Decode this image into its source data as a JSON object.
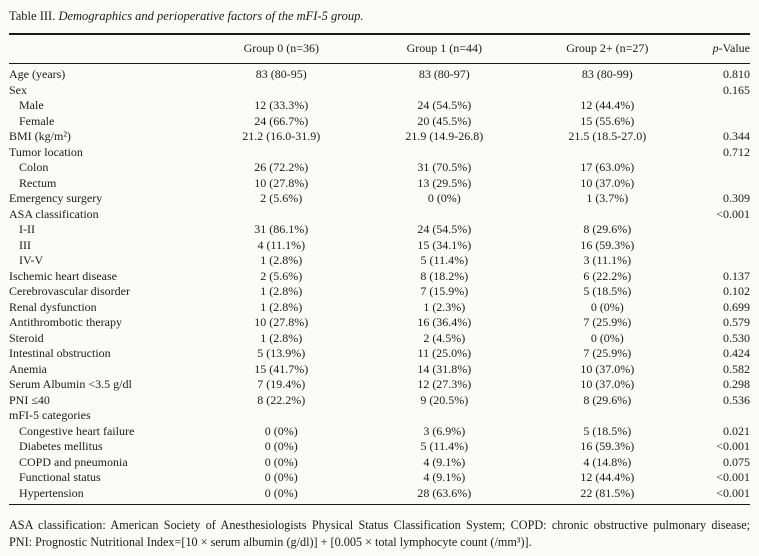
{
  "title": {
    "label": "Table III.",
    "caption": "Demographics and perioperative factors of the mFI-5 group."
  },
  "table": {
    "columns": [
      "Group 0 (n=36)",
      "Group 1 (n=44)",
      "Group 2+ (n=27)"
    ],
    "p_value_header": {
      "italic": "p",
      "rest": "-Value"
    },
    "rows": [
      {
        "label": "Age (years)",
        "indent": false,
        "g0": "83 (80-95)",
        "g1": "83 (80-97)",
        "g2": "83 (80-99)",
        "p": "0.810"
      },
      {
        "label": "Sex",
        "indent": false,
        "g0": "",
        "g1": "",
        "g2": "",
        "p": "0.165"
      },
      {
        "label": "Male",
        "indent": true,
        "g0": "12 (33.3%)",
        "g1": "24 (54.5%)",
        "g2": "12 (44.4%)",
        "p": ""
      },
      {
        "label": "Female",
        "indent": true,
        "g0": "24 (66.7%)",
        "g1": "20 (45.5%)",
        "g2": "15 (55.6%)",
        "p": ""
      },
      {
        "label": "BMI (kg/m²)",
        "indent": false,
        "g0": "21.2 (16.0-31.9)",
        "g1": "21.9 (14.9-26.8)",
        "g2": "21.5 (18.5-27.0)",
        "p": "0.344"
      },
      {
        "label": "Tumor location",
        "indent": false,
        "g0": "",
        "g1": "",
        "g2": "",
        "p": "0.712"
      },
      {
        "label": "Colon",
        "indent": true,
        "g0": "26 (72.2%)",
        "g1": "31 (70.5%)",
        "g2": "17 (63.0%)",
        "p": ""
      },
      {
        "label": "Rectum",
        "indent": true,
        "g0": "10 (27.8%)",
        "g1": "13 (29.5%)",
        "g2": "10 (37.0%)",
        "p": ""
      },
      {
        "label": "Emergency surgery",
        "indent": false,
        "g0": "2 (5.6%)",
        "g1": "0 (0%)",
        "g2": "1 (3.7%)",
        "p": "0.309"
      },
      {
        "label": "ASA classification",
        "indent": false,
        "g0": "",
        "g1": "",
        "g2": "",
        "p": "<0.001"
      },
      {
        "label": "I-II",
        "indent": true,
        "g0": "31 (86.1%)",
        "g1": "24 (54.5%)",
        "g2": "8 (29.6%)",
        "p": ""
      },
      {
        "label": "III",
        "indent": true,
        "g0": "4 (11.1%)",
        "g1": "15 (34.1%)",
        "g2": "16 (59.3%)",
        "p": ""
      },
      {
        "label": "IV-V",
        "indent": true,
        "g0": "1 (2.8%)",
        "g1": "5 (11.4%)",
        "g2": "3 (11.1%)",
        "p": ""
      },
      {
        "label": "Ischemic heart disease",
        "indent": false,
        "g0": "2 (5.6%)",
        "g1": "8 (18.2%)",
        "g2": "6 (22.2%)",
        "p": "0.137"
      },
      {
        "label": "Cerebrovascular disorder",
        "indent": false,
        "g0": "1 (2.8%)",
        "g1": "7 (15.9%)",
        "g2": "5 (18.5%)",
        "p": "0.102"
      },
      {
        "label": "Renal dysfunction",
        "indent": false,
        "g0": "1 (2.8%)",
        "g1": "1 (2.3%)",
        "g2": "0 (0%)",
        "p": "0.699"
      },
      {
        "label": "Antithrombotic therapy",
        "indent": false,
        "g0": "10 (27.8%)",
        "g1": "16 (36.4%)",
        "g2": "7 (25.9%)",
        "p": "0.579"
      },
      {
        "label": "Steroid",
        "indent": false,
        "g0": "1 (2.8%)",
        "g1": "2 (4.5%)",
        "g2": "0 (0%)",
        "p": "0.530"
      },
      {
        "label": "Intestinal obstruction",
        "indent": false,
        "g0": "5 (13.9%)",
        "g1": "11 (25.0%)",
        "g2": "7 (25.9%)",
        "p": "0.424"
      },
      {
        "label": "Anemia",
        "indent": false,
        "g0": "15 (41.7%)",
        "g1": "14 (31.8%)",
        "g2": "10 (37.0%)",
        "p": "0.582"
      },
      {
        "label": "Serum Albumin <3.5 g/dl",
        "indent": false,
        "g0": "7 (19.4%)",
        "g1": "12 (27.3%)",
        "g2": "10 (37.0%)",
        "p": "0.298"
      },
      {
        "label": "PNI ≤40",
        "indent": false,
        "g0": "8 (22.2%)",
        "g1": "9 (20.5%)",
        "g2": "8 (29.6%)",
        "p": "0.536"
      },
      {
        "label": "mFI-5 categories",
        "indent": false,
        "g0": "",
        "g1": "",
        "g2": "",
        "p": ""
      },
      {
        "label": "Congestive heart failure",
        "indent": true,
        "g0": "0 (0%)",
        "g1": "3 (6.9%)",
        "g2": "5 (18.5%)",
        "p": "0.021"
      },
      {
        "label": "Diabetes mellitus",
        "indent": true,
        "g0": "0 (0%)",
        "g1": "5 (11.4%)",
        "g2": "16 (59.3%)",
        "p": "<0.001"
      },
      {
        "label": "COPD and pneumonia",
        "indent": true,
        "g0": "0 (0%)",
        "g1": "4 (9.1%)",
        "g2": "4 (14.8%)",
        "p": "0.075"
      },
      {
        "label": "Functional status",
        "indent": true,
        "g0": "0 (0%)",
        "g1": "4 (9.1%)",
        "g2": "12 (44.4%)",
        "p": "<0.001"
      },
      {
        "label": "Hypertension",
        "indent": true,
        "g0": "0 (0%)",
        "g1": "28 (63.6%)",
        "g2": "22 (81.5%)",
        "p": "<0.001"
      }
    ]
  },
  "footnote": {
    "line1": "ASA classification: American Society of Anesthesiologists Physical Status Classification System; COPD: chronic obstructive pulmonary disease;",
    "line2": "PNI: Prognostic Nutritional Index=[10 × serum albumin (g/dl)] + [0.005 × total lymphocyte count (/mm³)]."
  }
}
